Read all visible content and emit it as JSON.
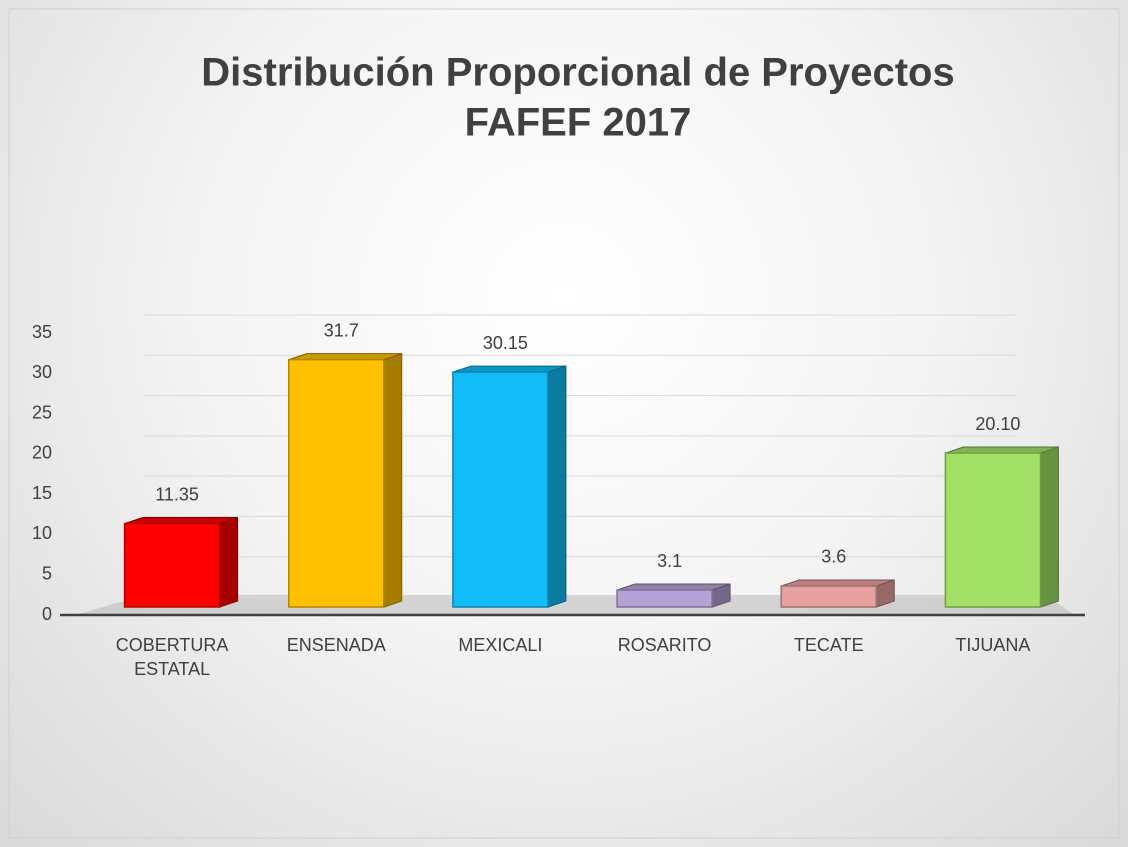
{
  "chart_data": {
    "type": "bar",
    "title": [
      "Distribución Proporcional de Proyectos",
      "FAFEF 2017"
    ],
    "categories": [
      "COBERTURA ESTATAL",
      "ENSENADA",
      "MEXICALI",
      "ROSARITO",
      "TECATE",
      "TIJUANA"
    ],
    "values": [
      11.35,
      31.7,
      30.15,
      3.1,
      3.6,
      20.1
    ],
    "value_labels": [
      "11.35",
      "31.7",
      "30.15",
      "3.1",
      "3.6",
      "20.10"
    ],
    "colors": [
      "#ff0000",
      "#ffc000",
      "#12bdf7",
      "#b4a2d4",
      "#e6a09e",
      "#a2e066"
    ],
    "ylim": [
      0,
      35
    ],
    "yticks": [
      0,
      5,
      10,
      15,
      20,
      25,
      30,
      35
    ],
    "grid": true
  }
}
